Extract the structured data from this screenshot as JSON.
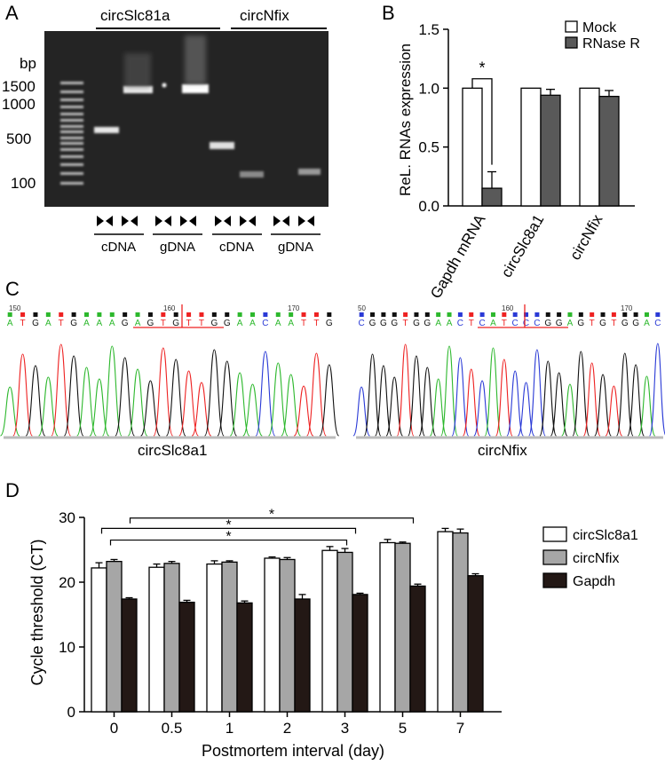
{
  "panelA": {
    "label": "A",
    "lane_headers": [
      "circSlc81a",
      "circNfix"
    ],
    "bp_title": "bp",
    "bp_markers": [
      "1500",
      "1000",
      "500",
      "100"
    ],
    "group_labels": [
      "cDNA",
      "gDNA",
      "cDNA",
      "gDNA"
    ],
    "primer_icons": [
      "divergent-primer-icon",
      "convergent-primer-icon"
    ],
    "bands": [
      {
        "lane": 2,
        "bp": 600
      },
      {
        "lane": 3,
        "bp": 1400
      },
      {
        "lane": 5,
        "bp": 1500
      },
      {
        "lane": 6,
        "bp": 400
      },
      {
        "lane": 7,
        "bp": 130
      },
      {
        "lane": 9,
        "bp": 130
      }
    ]
  },
  "panelB": {
    "label": "B",
    "chart_data": {
      "type": "bar",
      "categories": [
        "Gapdh mRNA",
        "circSlc8a1",
        "circNfix"
      ],
      "series": [
        {
          "name": "Mock",
          "values": [
            1.0,
            1.0,
            1.0
          ],
          "errors": [
            0,
            0,
            0
          ],
          "color": "#ffffff"
        },
        {
          "name": "RNase R",
          "values": [
            0.15,
            0.94,
            0.93
          ],
          "errors": [
            0.14,
            0.05,
            0.05
          ],
          "color": "#595959"
        }
      ],
      "ylabel": "ReL. RNAs expression",
      "ylim": [
        0,
        1.5
      ],
      "yticks": [
        "0.0",
        "0.5",
        "1.0",
        "1.5"
      ],
      "significance": "*",
      "legend": "top-right"
    }
  },
  "panelC": {
    "label": "C",
    "traces": [
      {
        "caption": "circSlc8a1",
        "tick_numbers": [
          "150",
          "160",
          "170"
        ],
        "bases": [
          "A",
          "T",
          "G",
          "A",
          "T",
          "G",
          "A",
          "A",
          "A",
          "G",
          "A",
          "G",
          "T",
          "G",
          "T",
          "T",
          "G",
          "G",
          "A",
          "A",
          "C",
          "A",
          "A",
          "T",
          "T",
          "G"
        ]
      },
      {
        "caption": "circNfix",
        "tick_numbers": [
          "50",
          "160",
          "170"
        ],
        "bases": [
          "C",
          "G",
          "G",
          "G",
          "T",
          "G",
          "G",
          "A",
          "A",
          "C",
          "T",
          "C",
          "A",
          "T",
          "C",
          "C",
          "C",
          "G",
          "G",
          "A",
          "G",
          "T",
          "G",
          "T",
          "G",
          "G",
          "A",
          "C"
        ]
      }
    ]
  },
  "panelD": {
    "label": "D",
    "chart_data": {
      "type": "bar",
      "categories": [
        "0",
        "0.5",
        "1",
        "2",
        "3",
        "5",
        "7"
      ],
      "series": [
        {
          "name": "circSlc8a1",
          "values": [
            22.2,
            22.3,
            22.8,
            23.7,
            24.9,
            26.1,
            27.8
          ],
          "errors": [
            0.8,
            0.5,
            0.5,
            0.2,
            0.6,
            0.5,
            0.5
          ],
          "color": "#ffffff"
        },
        {
          "name": "circNfix",
          "values": [
            23.2,
            22.9,
            23.1,
            23.5,
            24.6,
            26.0,
            27.6
          ],
          "errors": [
            0.3,
            0.3,
            0.2,
            0.3,
            0.6,
            0.2,
            0.6
          ],
          "color": "#a6a6a6"
        },
        {
          "name": "Gapdh",
          "values": [
            17.4,
            16.9,
            16.8,
            17.4,
            18.1,
            19.4,
            21.0
          ],
          "errors": [
            0.2,
            0.3,
            0.3,
            0.7,
            0.2,
            0.3,
            0.3
          ],
          "color": "#231815"
        }
      ],
      "xlabel": "Postmortem interval (day)",
      "ylabel": "Cycle threshold (CT)",
      "ylim": [
        0,
        30
      ],
      "yticks": [
        "0",
        "10",
        "20",
        "30"
      ],
      "significance": [
        "*",
        "*",
        "*"
      ],
      "legend": "right"
    }
  }
}
